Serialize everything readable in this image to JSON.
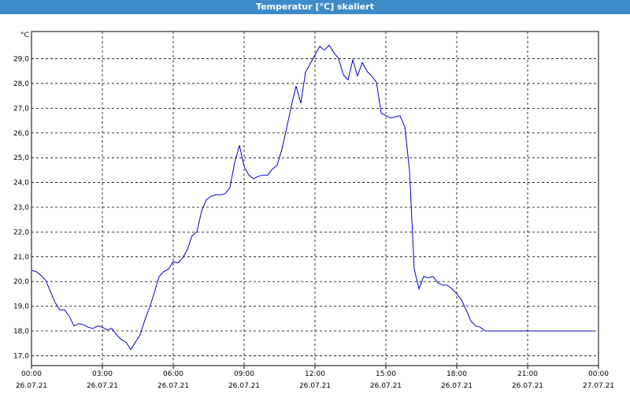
{
  "window": {
    "title": "Temperatur [°C] skaliert"
  },
  "chart_data": {
    "type": "line",
    "title": "Temperatur [°C] skaliert",
    "ylabel": "°C",
    "xlabel": "",
    "ylim": [
      16.6,
      30.1
    ],
    "yticks": [
      17.0,
      18.0,
      19.0,
      20.0,
      21.0,
      22.0,
      23.0,
      24.0,
      25.0,
      26.0,
      27.0,
      28.0,
      29.0
    ],
    "ytick_labels": [
      "17,0",
      "18,0",
      "19,0",
      "20,0",
      "21,0",
      "22,0",
      "23,0",
      "24,0",
      "25,0",
      "26,0",
      "27,0",
      "28,0",
      "29,0"
    ],
    "xlim": [
      "26.07.21 00:00",
      "27.07.21 00:00"
    ],
    "xticks": [
      {
        "time": "00:00",
        "date": "26.07.21"
      },
      {
        "time": "03:00",
        "date": "26.07.21"
      },
      {
        "time": "06:00",
        "date": "26.07.21"
      },
      {
        "time": "09:00",
        "date": "26.07.21"
      },
      {
        "time": "12:00",
        "date": "26.07.21"
      },
      {
        "time": "15:00",
        "date": "26.07.21"
      },
      {
        "time": "18:00",
        "date": "26.07.21"
      },
      {
        "time": "21:00",
        "date": "26.07.21"
      },
      {
        "time": "00:00",
        "date": "27.07.21"
      }
    ],
    "grid": true,
    "legend": "none",
    "line_color": "#0000cc",
    "series": [
      {
        "x": [
          "00:00",
          "00:12",
          "00:24",
          "00:36",
          "00:48",
          "01:00",
          "01:12",
          "01:24",
          "01:36",
          "01:48",
          "02:00",
          "02:12",
          "02:24",
          "02:36",
          "02:48",
          "03:00",
          "03:12",
          "03:24",
          "03:36",
          "03:48",
          "04:00",
          "04:12",
          "04:24",
          "04:36",
          "04:48",
          "05:00",
          "05:12",
          "05:24",
          "05:36",
          "05:48",
          "06:00",
          "06:12",
          "06:24",
          "06:36",
          "06:48",
          "07:00",
          "07:12",
          "07:24",
          "07:36",
          "07:48",
          "08:00",
          "08:12",
          "08:24",
          "08:36",
          "08:48",
          "09:00",
          "09:12",
          "09:24",
          "09:36",
          "09:48",
          "10:00",
          "10:12",
          "10:24",
          "10:36",
          "10:48",
          "11:00",
          "11:12",
          "11:24",
          "11:36",
          "11:48",
          "12:00",
          "12:12",
          "12:24",
          "12:36",
          "12:48",
          "13:00",
          "13:12",
          "13:24",
          "13:36",
          "13:48",
          "14:00",
          "14:12",
          "14:24",
          "14:36",
          "14:48",
          "15:00",
          "15:12",
          "15:24",
          "15:36",
          "15:48",
          "16:00",
          "16:12",
          "16:24",
          "16:36",
          "16:48",
          "17:00",
          "17:12",
          "17:24",
          "17:36",
          "17:48",
          "18:00",
          "18:12",
          "18:24",
          "18:36",
          "18:48",
          "19:00",
          "19:12",
          "19:24",
          "19:36",
          "19:48",
          "20:00",
          "20:12",
          "20:24",
          "20:36",
          "20:48",
          "21:00",
          "21:12",
          "21:24",
          "21:36",
          "21:48",
          "22:00",
          "22:12",
          "22:24",
          "22:36",
          "22:48",
          "23:00",
          "23:12",
          "23:24",
          "23:36",
          "23:48"
        ],
        "values": [
          20.45,
          20.4,
          20.25,
          20.05,
          19.6,
          19.15,
          18.85,
          18.85,
          18.6,
          18.2,
          18.3,
          18.25,
          18.15,
          18.1,
          18.2,
          18.15,
          18.05,
          18.1,
          17.85,
          17.65,
          17.55,
          17.25,
          17.55,
          17.85,
          18.45,
          18.95,
          19.55,
          20.2,
          20.4,
          20.5,
          20.8,
          20.75,
          20.95,
          21.3,
          21.85,
          22.0,
          22.85,
          23.3,
          23.45,
          23.5,
          23.5,
          23.55,
          23.8,
          24.8,
          25.5,
          24.65,
          24.3,
          24.15,
          24.25,
          24.3,
          24.3,
          24.55,
          24.7,
          25.35,
          26.2,
          27.1,
          27.9,
          27.2,
          28.45,
          28.8,
          29.15,
          29.5,
          29.35,
          29.55,
          29.25,
          29.0,
          28.35,
          28.15,
          28.95,
          28.3,
          28.85,
          28.5,
          28.3,
          28.05,
          26.8,
          26.7,
          26.6,
          26.65,
          26.7,
          26.25,
          24.5,
          20.5,
          19.7,
          20.2,
          20.15,
          20.2,
          19.95,
          19.85,
          19.85,
          19.7,
          19.5,
          19.25,
          18.85,
          18.4,
          18.2,
          18.15,
          18.0,
          18.0,
          18.0,
          18.0,
          18.0,
          18.0,
          18.0,
          18.0,
          18.0,
          18.0,
          18.0,
          18.0,
          18.0,
          18.0,
          18.0,
          18.0,
          18.0,
          18.0,
          18.0,
          18.0,
          18.0,
          18.0,
          18.0,
          18.0
        ]
      }
    ]
  }
}
